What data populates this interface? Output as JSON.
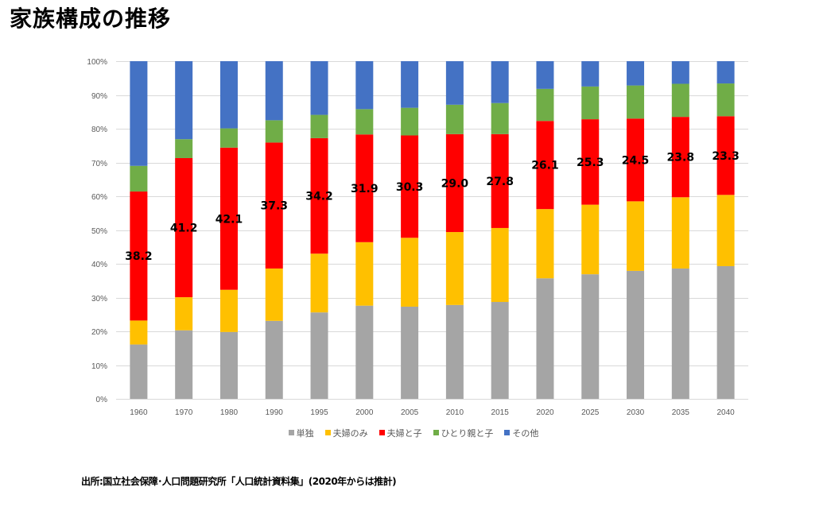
{
  "title": "家族構成の推移",
  "source": "出所:国立社会保障･人口問題研究所「人口統計資料集」(2020年からは推計)",
  "chart_data": {
    "type": "bar",
    "stacked": "percent",
    "title": "家族構成の推移",
    "xlabel": "",
    "ylabel": "",
    "ylim": [
      0,
      100
    ],
    "yticks": [
      "0%",
      "10%",
      "20%",
      "30%",
      "40%",
      "50%",
      "60%",
      "70%",
      "80%",
      "90%",
      "100%"
    ],
    "grid": true,
    "legend_position": "bottom",
    "categories": [
      "1960",
      "1970",
      "1980",
      "1990",
      "1995",
      "2000",
      "2005",
      "2010",
      "2015",
      "2020",
      "2025",
      "2030",
      "2035",
      "2040"
    ],
    "series": [
      {
        "name": "単独",
        "color": "#a5a5a5",
        "values": [
          16.1,
          20.3,
          19.8,
          23.1,
          25.6,
          27.6,
          27.3,
          27.8,
          28.7,
          35.7,
          36.9,
          37.9,
          38.6,
          39.3
        ]
      },
      {
        "name": "夫婦のみ",
        "color": "#ffc000",
        "values": [
          7.1,
          9.8,
          12.5,
          15.5,
          17.4,
          18.8,
          20.4,
          21.6,
          21.9,
          20.5,
          20.6,
          20.6,
          21.1,
          21.1
        ]
      },
      {
        "name": "夫婦と子",
        "color": "#ff0000",
        "values": [
          38.2,
          41.2,
          42.1,
          37.3,
          34.2,
          31.9,
          30.3,
          29.0,
          27.8,
          26.1,
          25.3,
          24.5,
          23.8,
          23.3
        ]
      },
      {
        "name": "ひとり親と子",
        "color": "#70ad47",
        "values": [
          7.6,
          5.6,
          5.7,
          6.6,
          6.9,
          7.5,
          8.2,
          8.7,
          9.2,
          9.5,
          9.7,
          9.8,
          9.8,
          9.7
        ]
      },
      {
        "name": "その他",
        "color": "#4472c4",
        "values": [
          31.0,
          23.1,
          19.9,
          17.5,
          15.9,
          14.2,
          13.8,
          12.9,
          12.4,
          8.2,
          7.5,
          7.2,
          6.7,
          6.6
        ]
      }
    ],
    "data_labels": {
      "series": "夫婦と子",
      "values": [
        "38.2",
        "41.2",
        "42.1",
        "37.3",
        "34.2",
        "31.9",
        "30.3",
        "29.0",
        "27.8",
        "26.1",
        "25.3",
        "24.5",
        "23.8",
        "23.3"
      ]
    }
  }
}
